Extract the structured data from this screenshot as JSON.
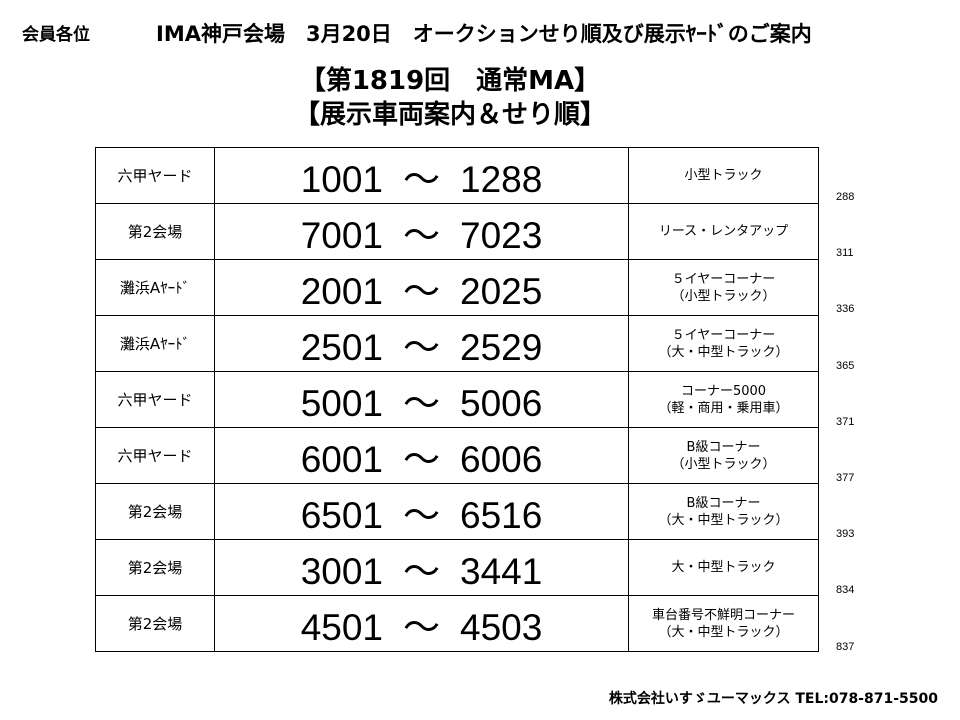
{
  "header": {
    "recipients": "会員各位",
    "title": "IMA神戸会場　3月20日　オークションせり順及び展示ﾔｰﾄﾞのご案内",
    "subtitle_line1": "【第1819回　通常MA】",
    "subtitle_line2": "【展示車両案内＆せり順】"
  },
  "table": {
    "rows": [
      {
        "yard": "六甲ヤード",
        "start": "1001",
        "end": "1288",
        "category": [
          "小型トラック"
        ],
        "cumulative": "288"
      },
      {
        "yard": "第2会場",
        "start": "7001",
        "end": "7023",
        "category": [
          "リース・レンタアップ"
        ],
        "cumulative": "311"
      },
      {
        "yard": "灘浜Aﾔｰﾄﾞ",
        "start": "2001",
        "end": "2025",
        "category": [
          "５イヤーコーナー",
          "（小型トラック）"
        ],
        "cumulative": "336"
      },
      {
        "yard": "灘浜Aﾔｰﾄﾞ",
        "start": "2501",
        "end": "2529",
        "category": [
          "５イヤーコーナー",
          "（大・中型トラック）"
        ],
        "cumulative": "365"
      },
      {
        "yard": "六甲ヤード",
        "start": "5001",
        "end": "5006",
        "category": [
          "コーナー5000",
          "（軽・商用・乗用車）"
        ],
        "cumulative": "371"
      },
      {
        "yard": "六甲ヤード",
        "start": "6001",
        "end": "6006",
        "category": [
          "B級コーナー",
          "（小型トラック）"
        ],
        "cumulative": "377"
      },
      {
        "yard": "第2会場",
        "start": "6501",
        "end": "6516",
        "category": [
          "B級コーナー",
          "（大・中型トラック）"
        ],
        "cumulative": "393"
      },
      {
        "yard": "第2会場",
        "start": "3001",
        "end": "3441",
        "category": [
          "大・中型トラック"
        ],
        "cumulative": "834"
      },
      {
        "yard": "第2会場",
        "start": "4501",
        "end": "4503",
        "category": [
          "車台番号不鮮明コーナー",
          "（大・中型トラック）"
        ],
        "cumulative": "837"
      }
    ],
    "range_separator": "～"
  },
  "footer": {
    "company": "株式会社いすゞユーマックス TEL:078-871-5500"
  }
}
